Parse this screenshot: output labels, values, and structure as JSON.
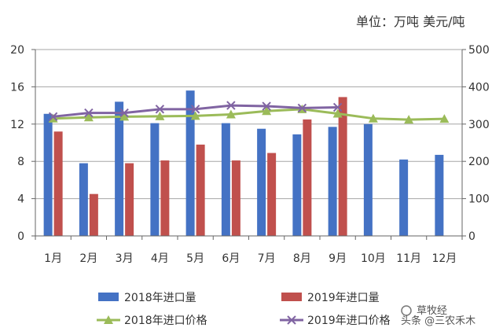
{
  "chart_data": {
    "type": "bar",
    "unit_label": "单位：万吨 美元/吨",
    "categories": [
      "1月",
      "2月",
      "3月",
      "4月",
      "5月",
      "6月",
      "7月",
      "8月",
      "9月",
      "10月",
      "11月",
      "12月"
    ],
    "left_axis": {
      "ylim": [
        0,
        20
      ],
      "ticks": [
        "0",
        "4",
        "8",
        "12",
        "16",
        "20"
      ]
    },
    "right_axis": {
      "ylim": [
        0,
        500
      ],
      "ticks": [
        "0",
        "100",
        "200",
        "300",
        "400",
        "500"
      ]
    },
    "bar_series": [
      {
        "name": "2018年进口量",
        "color": "#4472c4",
        "values": [
          13.1,
          7.8,
          14.4,
          12.1,
          15.6,
          12.1,
          11.5,
          10.9,
          11.7,
          12.0,
          8.2,
          8.7
        ]
      },
      {
        "name": "2019年进口量",
        "color": "#c0504d",
        "values": [
          11.2,
          4.5,
          7.8,
          8.1,
          9.8,
          8.1,
          8.9,
          12.5,
          14.9,
          null,
          null,
          null
        ]
      }
    ],
    "line_series": [
      {
        "name": "2018年进口价格",
        "color": "#9bbb59",
        "marker": "triangle",
        "values": [
          315,
          318,
          320,
          321,
          322,
          326,
          335,
          340,
          328,
          315,
          312,
          314
        ]
      },
      {
        "name": "2019年进口价格",
        "color": "#8064a2",
        "marker": "x",
        "values": [
          320,
          330,
          330,
          340,
          340,
          350,
          348,
          343,
          345,
          null,
          null,
          null
        ]
      }
    ]
  },
  "watermark": {
    "line1": "草牧经",
    "line2": "头条 @三农禾木"
  }
}
